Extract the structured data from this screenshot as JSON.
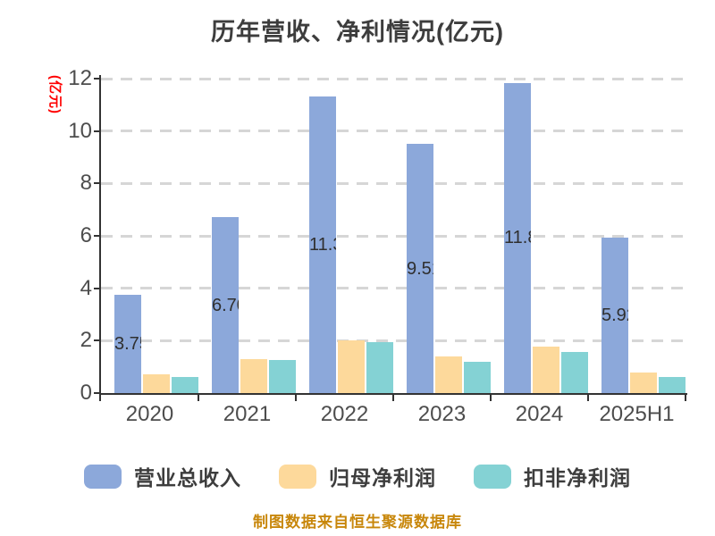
{
  "chart_data": {
    "type": "bar",
    "title": "历年营收、净利情况(亿元)",
    "ylabel": "(亿元)",
    "ylim": [
      0,
      12
    ],
    "y_ticks": [
      "0",
      "2",
      "4",
      "6",
      "8",
      "10",
      "12"
    ],
    "grid": "horizontal dashed",
    "legend_position": "bottom",
    "categories": [
      "2020",
      "2021",
      "2022",
      "2023",
      "2024",
      "2025H1"
    ],
    "series": [
      {
        "name": "营业总收入",
        "color": "#8ca8da",
        "values": [
          3.75,
          6.7,
          11.33,
          9.51,
          11.84,
          5.92
        ],
        "value_labels": [
          "3.75",
          "6.70",
          "11.33",
          "9.51",
          "11.84",
          "5.92"
        ]
      },
      {
        "name": "归母净利润",
        "color": "#fdd99b",
        "values": [
          0.72,
          1.3,
          2.02,
          1.4,
          1.78,
          0.78
        ],
        "value_labels": null
      },
      {
        "name": "扣非净利润",
        "color": "#84d2d4",
        "values": [
          0.6,
          1.27,
          1.95,
          1.21,
          1.58,
          0.63
        ],
        "value_labels": null
      }
    ]
  },
  "source_note": "制图数据来自恒生聚源数据库",
  "colors": {
    "title_text": "#3d3d3d",
    "tick_text": "#4d4d4d",
    "axis_line": "#333333",
    "gridline": "#d6d6d6",
    "unit_label": "#ff0000",
    "source_note": "#c8870b"
  }
}
